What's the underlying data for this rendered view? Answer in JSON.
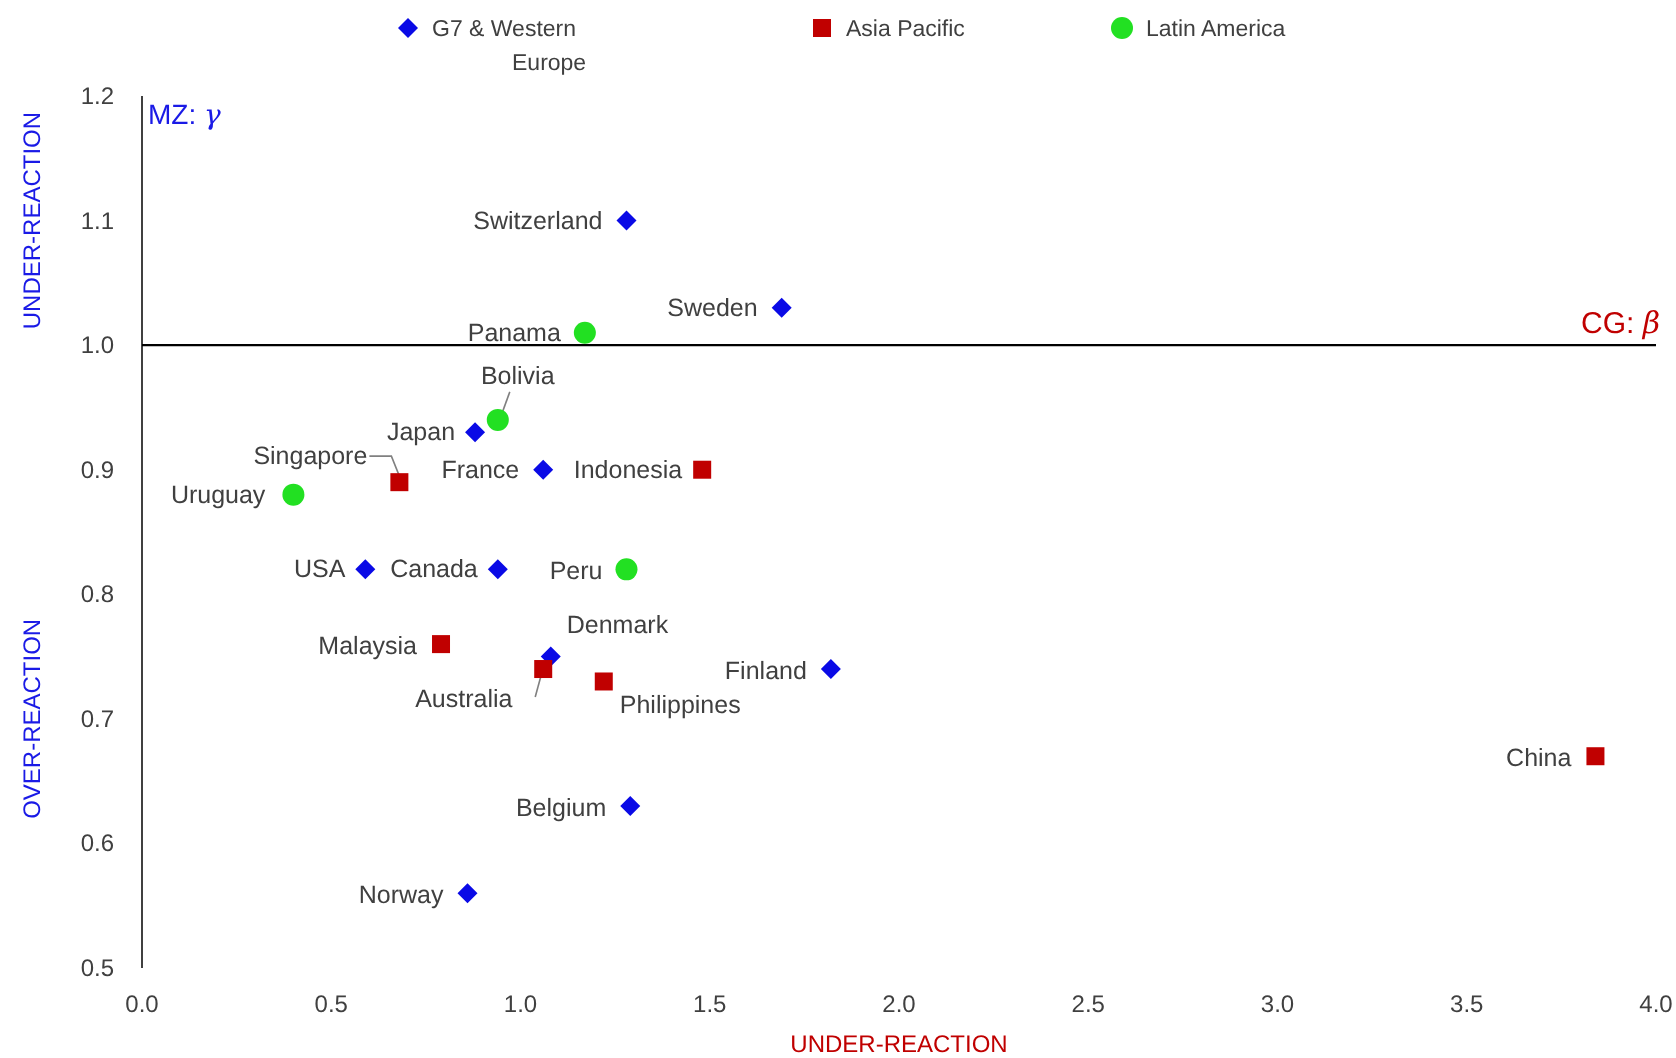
{
  "chart_data": {
    "type": "scatter",
    "xlabel": "UNDER-REACTION",
    "ylabel": "MZ: γ",
    "xlim": [
      0,
      4
    ],
    "ylim": [
      0.5,
      1.2
    ],
    "xticks": [
      {
        "value": 0,
        "label": "0.0"
      },
      {
        "value": 0.5,
        "label": "0.5"
      },
      {
        "value": 1,
        "label": "1.0"
      },
      {
        "value": 1.5,
        "label": "1.5"
      },
      {
        "value": 2,
        "label": "2.0"
      },
      {
        "value": 2.5,
        "label": "2.5"
      },
      {
        "value": 3,
        "label": "3.0"
      },
      {
        "value": 3.5,
        "label": "3.5"
      },
      {
        "value": 4,
        "label": "4.0"
      }
    ],
    "yticks": [
      0.5,
      0.6,
      0.7,
      0.8,
      0.9,
      {
        "value": 1,
        "label": "1.0"
      },
      1.1,
      1.2
    ],
    "grid": false,
    "legend": "top",
    "ref_lines": [
      {
        "axis": "y",
        "value": 1,
        "label": "CG: β",
        "color": "#000000"
      }
    ],
    "series": [
      {
        "name": "G7 & Western Europe",
        "color": "#0a0ae6",
        "marker": "diamond",
        "x": [
          1.28,
          1.69,
          0.88,
          1.06,
          0.94,
          0.59,
          1.08,
          1.82,
          1.29,
          0.86
        ],
        "values": [
          1.1,
          1.03,
          0.93,
          0.9,
          0.82,
          0.82,
          0.75,
          0.74,
          0.63,
          0.56
        ]
      },
      {
        "name": "Asia Pacific",
        "color": "#c00000",
        "marker": "square",
        "x": [
          0.68,
          1.48,
          0.79,
          1.06,
          1.22,
          3.84
        ],
        "values": [
          0.89,
          0.9,
          0.76,
          0.74,
          0.73,
          0.67
        ]
      },
      {
        "name": "Latin America",
        "color": "#22e022",
        "marker": "circle",
        "x": [
          1.17,
          0.94,
          0.4,
          1.28
        ],
        "values": [
          1.01,
          0.94,
          0.88,
          0.82
        ]
      }
    ],
    "annotations": [
      "UNDER-REACTION",
      "OVER-REACTION",
      {
        "text": "Switzerland",
        "x": 1.28,
        "y": 1.1
      },
      {
        "text": "Sweden",
        "x": 1.69,
        "y": 1.03
      },
      {
        "text": "Japan",
        "x": 0.88,
        "y": 0.93
      },
      {
        "text": "France",
        "x": 1.06,
        "y": 0.9
      },
      {
        "text": "Canada",
        "x": 0.94,
        "y": 0.82
      },
      {
        "text": "USA",
        "x": 0.59,
        "y": 0.82
      },
      {
        "text": "Denmark",
        "x": 1.08,
        "y": 0.75
      },
      {
        "text": "Finland",
        "x": 1.82,
        "y": 0.74
      },
      {
        "text": "Belgium",
        "x": 1.29,
        "y": 0.63
      },
      {
        "text": "Norway",
        "x": 0.86,
        "y": 0.56
      },
      {
        "text": "Singapore",
        "x": 0.68,
        "y": 0.89
      },
      {
        "text": "Indonesia",
        "x": 1.48,
        "y": 0.9
      },
      {
        "text": "Malaysia",
        "x": 0.79,
        "y": 0.76
      },
      {
        "text": "Australia",
        "x": 1.06,
        "y": 0.74
      },
      {
        "text": "Philippines",
        "x": 1.22,
        "y": 0.73
      },
      {
        "text": "China",
        "x": 3.84,
        "y": 0.67
      },
      {
        "text": "Panama",
        "x": 1.17,
        "y": 1.01
      },
      {
        "text": "Bolivia",
        "x": 0.94,
        "y": 0.94
      },
      {
        "text": "Uruguay",
        "x": 0.4,
        "y": 0.88
      },
      {
        "text": "Peru",
        "x": 1.28,
        "y": 0.82
      }
    ]
  }
}
